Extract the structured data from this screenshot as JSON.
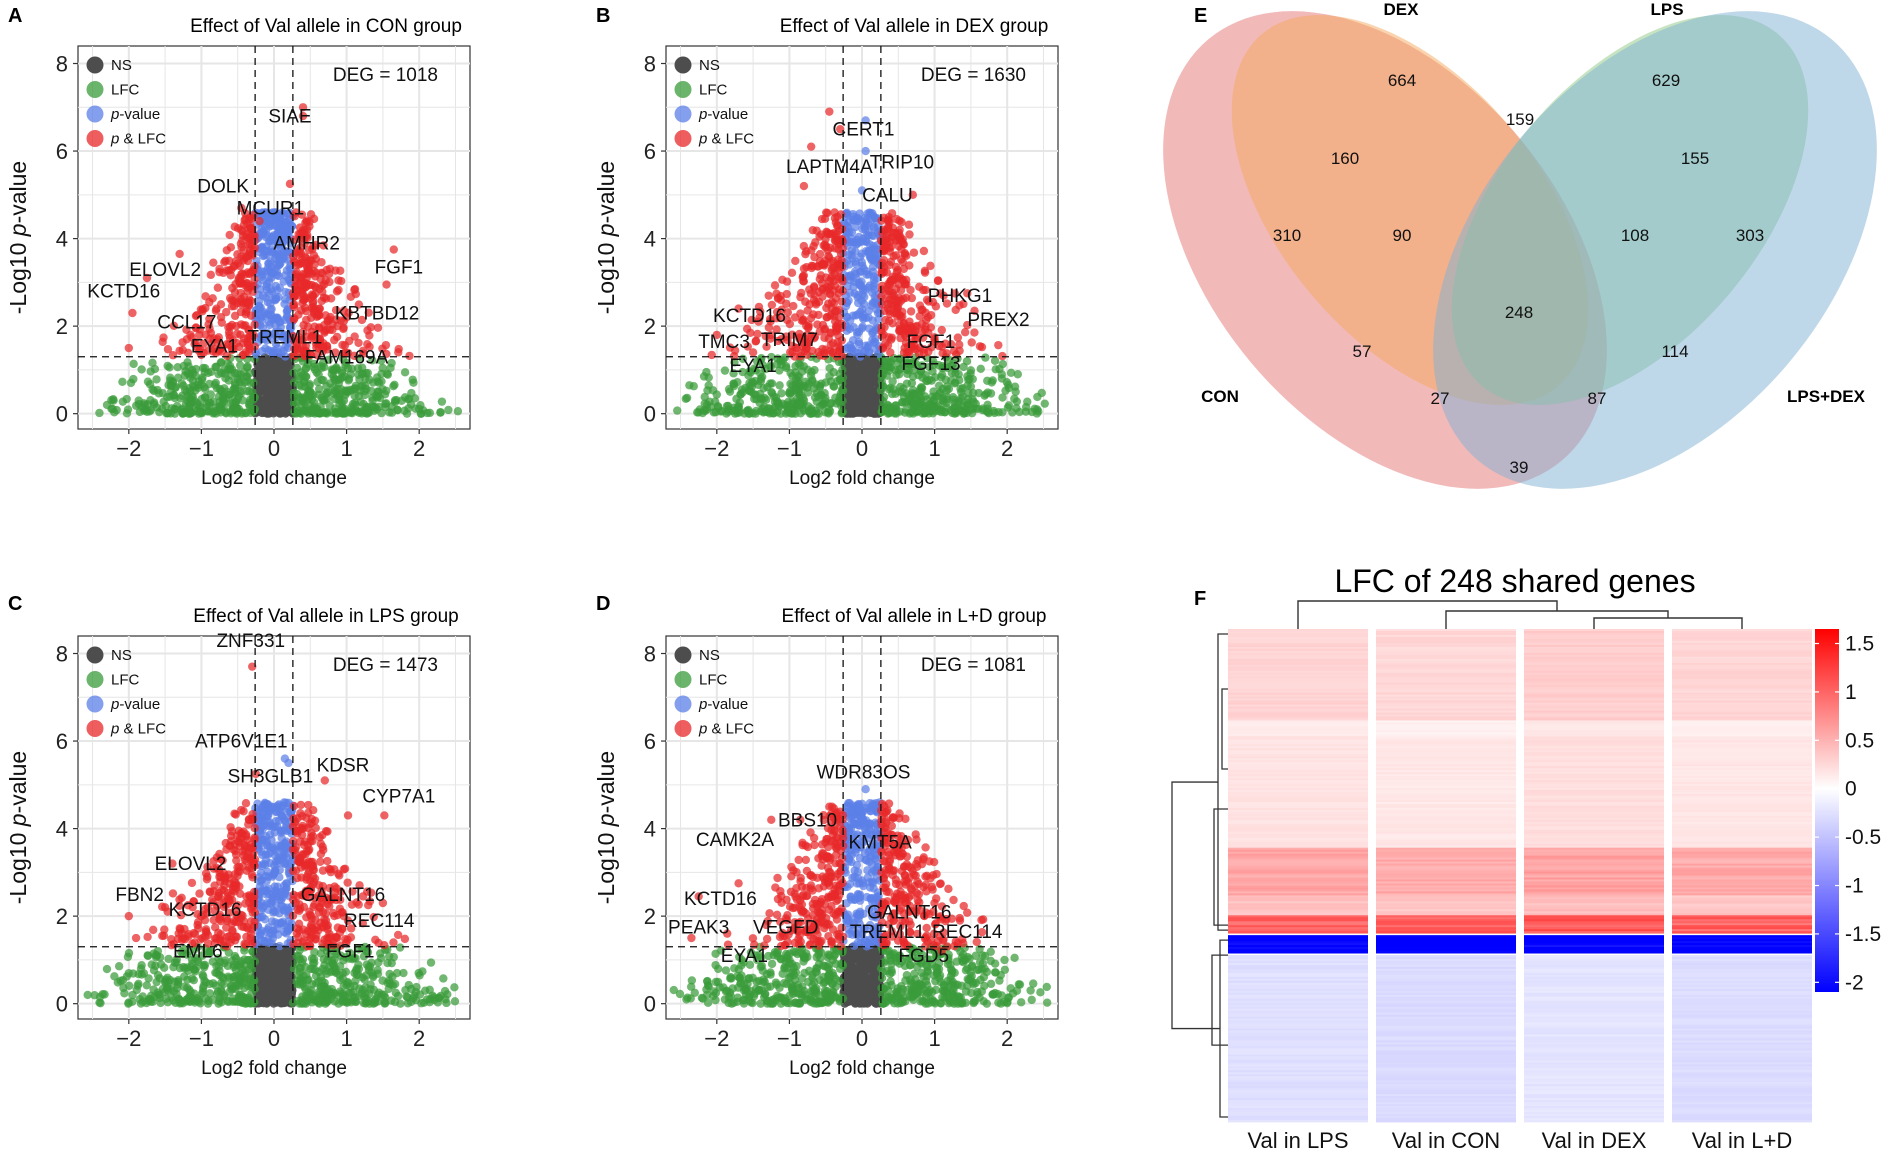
{
  "colors": {
    "ns": "#4d4d4d",
    "lfc": "#3a9b3a",
    "pvalue": "#5b7fe8",
    "p_lfc": "#e8282a",
    "grid": "#e6e6e6",
    "venn_con": "#e57373",
    "venn_dex": "#f3a95e",
    "venn_lps": "#8fca86",
    "venn_lpsdex": "#7fb2d4",
    "heat_pos": "#ff0000",
    "heat_neg": "#0000ff"
  },
  "chart_data": [
    {
      "id": "A",
      "type": "scatter",
      "title": "Effect of Val allele in CON group",
      "xlabel": "Log2 fold change",
      "ylabel_prefix": "-Log10 ",
      "ylabel_italic": "p",
      "ylabel_suffix": "-value",
      "xlim": [
        -2.7,
        2.7
      ],
      "ylim": [
        -0.35,
        8.4
      ],
      "xticks": [
        -2,
        -1,
        0,
        1,
        2
      ],
      "yticks": [
        0,
        2,
        4,
        6,
        8
      ],
      "fc_cutoff": 0.26,
      "p_cutoff": 1.3,
      "deg_label": "DEG = 1018",
      "legend": [
        {
          "key": "ns",
          "label": "NS"
        },
        {
          "key": "lfc",
          "label": "LFC"
        },
        {
          "key": "pvalue",
          "label": "-value",
          "italic": "p"
        },
        {
          "key": "p_lfc",
          "label": " & LFC",
          "italic": "p"
        }
      ],
      "max_width": 2.8,
      "seed": 11,
      "highlight_points": [
        {
          "x": 0.4,
          "y": 7.0,
          "t": "r"
        },
        {
          "x": 0.22,
          "y": 5.25,
          "t": "r"
        },
        {
          "x": -0.45,
          "y": 4.7,
          "t": "r"
        },
        {
          "x": -0.2,
          "y": 4.4,
          "t": "r"
        },
        {
          "x": -1.3,
          "y": 3.65,
          "t": "r"
        },
        {
          "x": -1.75,
          "y": 3.1,
          "t": "r"
        },
        {
          "x": -1.95,
          "y": 2.3,
          "t": "r"
        },
        {
          "x": -2.0,
          "y": 1.5,
          "t": "r"
        },
        {
          "x": 1.65,
          "y": 3.75,
          "t": "r"
        },
        {
          "x": 1.55,
          "y": 2.95,
          "t": "r"
        },
        {
          "x": 1.0,
          "y": 2.2,
          "t": "r"
        },
        {
          "x": -1.2,
          "y": 1.7,
          "t": "r"
        },
        {
          "x": 0.5,
          "y": 1.35,
          "t": "r"
        },
        {
          "x": 0.4,
          "y": 6.8,
          "t": "r"
        }
      ],
      "labels": [
        {
          "text": "SIAE",
          "x": 0.22,
          "y": 6.65
        },
        {
          "text": "DOLK",
          "x": -0.7,
          "y": 5.05
        },
        {
          "text": "MCUR1",
          "x": -0.05,
          "y": 4.55
        },
        {
          "text": "AMHR2",
          "x": 0.45,
          "y": 3.75
        },
        {
          "text": "ELOVL2",
          "x": -1.5,
          "y": 3.15
        },
        {
          "text": "KCTD16",
          "x": -2.07,
          "y": 2.65
        },
        {
          "text": "CCL17",
          "x": -1.2,
          "y": 1.95
        },
        {
          "text": "EYA1",
          "x": -0.82,
          "y": 1.4
        },
        {
          "text": "TREML1",
          "x": 0.15,
          "y": 1.6
        },
        {
          "text": "FGF1",
          "x": 1.72,
          "y": 3.2
        },
        {
          "text": "KBTBD12",
          "x": 1.42,
          "y": 2.15
        },
        {
          "text": "FAM169A",
          "x": 1.0,
          "y": 1.15
        }
      ]
    },
    {
      "id": "B",
      "type": "scatter",
      "title": "Effect of Val allele in DEX group",
      "xlabel": "Log2 fold change",
      "ylabel_prefix": "-Log10 ",
      "ylabel_italic": "p",
      "ylabel_suffix": "-value",
      "xlim": [
        -2.7,
        2.7
      ],
      "ylim": [
        -0.35,
        8.4
      ],
      "xticks": [
        -2,
        -1,
        0,
        1,
        2
      ],
      "yticks": [
        0,
        2,
        4,
        6,
        8
      ],
      "fc_cutoff": 0.26,
      "p_cutoff": 1.3,
      "deg_label": "DEG = 1630",
      "legend": [
        {
          "key": "ns",
          "label": "NS"
        },
        {
          "key": "lfc",
          "label": "LFC"
        },
        {
          "key": "pvalue",
          "label": "-value",
          "italic": "p"
        },
        {
          "key": "p_lfc",
          "label": " & LFC",
          "italic": "p"
        }
      ],
      "max_width": 3.1,
      "seed": 23,
      "highlight_points": [
        {
          "x": -0.45,
          "y": 6.9,
          "t": "r"
        },
        {
          "x": -0.3,
          "y": 6.5,
          "t": "r"
        },
        {
          "x": 0.05,
          "y": 6.7,
          "t": "b"
        },
        {
          "x": 0.05,
          "y": 6.0,
          "t": "b"
        },
        {
          "x": -0.7,
          "y": 6.1,
          "t": "r"
        },
        {
          "x": -0.8,
          "y": 5.2,
          "t": "r"
        },
        {
          "x": 0.0,
          "y": 5.1,
          "t": "b"
        },
        {
          "x": 0.7,
          "y": 5.0,
          "t": "r"
        },
        {
          "x": -1.7,
          "y": 2.4,
          "t": "r"
        },
        {
          "x": -2.0,
          "y": 1.8,
          "t": "r"
        },
        {
          "x": 1.45,
          "y": 2.75,
          "t": "r"
        },
        {
          "x": 1.55,
          "y": 2.35,
          "t": "r"
        },
        {
          "x": 1.15,
          "y": 1.6,
          "t": "r"
        },
        {
          "x": -1.5,
          "y": 1.4,
          "t": "r"
        },
        {
          "x": -1.55,
          "y": 0.7,
          "t": "g"
        }
      ],
      "labels": [
        {
          "text": "CERT1",
          "x": 0.02,
          "y": 6.35
        },
        {
          "text": "LAPTM4A",
          "x": -0.45,
          "y": 5.5
        },
        {
          "text": "TRIP10",
          "x": 0.55,
          "y": 5.6
        },
        {
          "text": "CALU",
          "x": 0.35,
          "y": 4.85
        },
        {
          "text": "PHKG1",
          "x": 1.35,
          "y": 2.55
        },
        {
          "text": "PREX2",
          "x": 1.88,
          "y": 2.0
        },
        {
          "text": "KCTD16",
          "x": -1.55,
          "y": 2.1
        },
        {
          "text": "TMC3",
          "x": -1.9,
          "y": 1.5
        },
        {
          "text": "TRIM7",
          "x": -1.0,
          "y": 1.55
        },
        {
          "text": "FGF1",
          "x": 0.95,
          "y": 1.5
        },
        {
          "text": "EYA1",
          "x": -1.5,
          "y": 0.95
        },
        {
          "text": "FGF13",
          "x": 0.95,
          "y": 1.0
        }
      ]
    },
    {
      "id": "C",
      "type": "scatter",
      "title": "Effect of Val allele in LPS group",
      "xlabel": "Log2 fold change",
      "ylabel_prefix": "-Log10 ",
      "ylabel_italic": "p",
      "ylabel_suffix": "-value",
      "xlim": [
        -2.7,
        2.7
      ],
      "ylim": [
        -0.35,
        8.4
      ],
      "xticks": [
        -2,
        -1,
        0,
        1,
        2
      ],
      "yticks": [
        0,
        2,
        4,
        6,
        8
      ],
      "fc_cutoff": 0.26,
      "p_cutoff": 1.3,
      "deg_label": "DEG = 1473",
      "legend": [
        {
          "key": "ns",
          "label": "NS"
        },
        {
          "key": "lfc",
          "label": "LFC"
        },
        {
          "key": "pvalue",
          "label": "-value",
          "italic": "p"
        },
        {
          "key": "p_lfc",
          "label": " & LFC",
          "italic": "p"
        }
      ],
      "max_width": 3.0,
      "seed": 37,
      "highlight_points": [
        {
          "x": -0.3,
          "y": 7.7,
          "t": "r"
        },
        {
          "x": 0.15,
          "y": 5.6,
          "t": "b"
        },
        {
          "x": 0.2,
          "y": 5.5,
          "t": "b"
        },
        {
          "x": -0.25,
          "y": 5.25,
          "t": "r"
        },
        {
          "x": 0.7,
          "y": 5.1,
          "t": "r"
        },
        {
          "x": 1.02,
          "y": 4.3,
          "t": "r"
        },
        {
          "x": 1.52,
          "y": 4.3,
          "t": "r"
        },
        {
          "x": -1.4,
          "y": 3.2,
          "t": "r"
        },
        {
          "x": -2.0,
          "y": 2.0,
          "t": "r"
        },
        {
          "x": -1.5,
          "y": 2.2,
          "t": "r"
        },
        {
          "x": -1.9,
          "y": 1.5,
          "t": "r"
        },
        {
          "x": 1.5,
          "y": 2.3,
          "t": "r"
        },
        {
          "x": -1.6,
          "y": 1.2,
          "t": "g"
        }
      ],
      "labels": [
        {
          "text": "ZNF331",
          "x": -0.32,
          "y": 8.15
        },
        {
          "text": "ATP6V1E1",
          "x": -0.45,
          "y": 5.85
        },
        {
          "text": "KDSR",
          "x": 0.95,
          "y": 5.3
        },
        {
          "text": "SH3GLB1",
          "x": -0.05,
          "y": 5.05
        },
        {
          "text": "CYP7A1",
          "x": 1.72,
          "y": 4.6
        },
        {
          "text": "ELOVL2",
          "x": -1.15,
          "y": 3.05
        },
        {
          "text": "FBN2",
          "x": -1.85,
          "y": 2.35
        },
        {
          "text": "KCTD16",
          "x": -0.95,
          "y": 2.0
        },
        {
          "text": "GALNT16",
          "x": 0.95,
          "y": 2.35
        },
        {
          "text": "REC114",
          "x": 1.45,
          "y": 1.75
        },
        {
          "text": "EML6",
          "x": -1.05,
          "y": 1.05
        },
        {
          "text": "FGF1",
          "x": 1.05,
          "y": 1.05
        }
      ]
    },
    {
      "id": "D",
      "type": "scatter",
      "title": "Effect of Val allele in L+D group",
      "xlabel": "Log2 fold change",
      "ylabel_prefix": "-Log10 ",
      "ylabel_italic": "p",
      "ylabel_suffix": "-value",
      "xlim": [
        -2.7,
        2.7
      ],
      "ylim": [
        -0.35,
        8.4
      ],
      "xticks": [
        -2,
        -1,
        0,
        1,
        2
      ],
      "yticks": [
        0,
        2,
        4,
        6,
        8
      ],
      "fc_cutoff": 0.26,
      "p_cutoff": 1.3,
      "deg_label": "DEG = 1081",
      "legend": [
        {
          "key": "ns",
          "label": "NS"
        },
        {
          "key": "lfc",
          "label": "LFC"
        },
        {
          "key": "pvalue",
          "label": "-value",
          "italic": "p"
        },
        {
          "key": "p_lfc",
          "label": " & LFC",
          "italic": "p"
        }
      ],
      "max_width": 2.9,
      "seed": 51,
      "highlight_points": [
        {
          "x": 0.05,
          "y": 4.9,
          "t": "b"
        },
        {
          "x": -0.45,
          "y": 4.5,
          "t": "r"
        },
        {
          "x": -1.25,
          "y": 4.2,
          "t": "r"
        },
        {
          "x": -0.85,
          "y": 4.2,
          "t": "r"
        },
        {
          "x": -0.35,
          "y": 3.8,
          "t": "r"
        },
        {
          "x": 0.0,
          "y": 3.7,
          "t": "b"
        },
        {
          "x": 0.75,
          "y": 3.75,
          "t": "r"
        },
        {
          "x": -2.25,
          "y": 2.45,
          "t": "r"
        },
        {
          "x": -1.7,
          "y": 2.75,
          "t": "r"
        },
        {
          "x": 1.35,
          "y": 1.9,
          "t": "r"
        },
        {
          "x": -2.35,
          "y": 1.5,
          "t": "r"
        },
        {
          "x": 1.1,
          "y": 1.2,
          "t": "r"
        }
      ],
      "labels": [
        {
          "text": "WDR83OS",
          "x": 0.02,
          "y": 5.15
        },
        {
          "text": "BBS10",
          "x": -0.75,
          "y": 4.05
        },
        {
          "text": "CAMK2A",
          "x": -1.75,
          "y": 3.6
        },
        {
          "text": "KMT5A",
          "x": 0.25,
          "y": 3.55
        },
        {
          "text": "KCTD16",
          "x": -1.95,
          "y": 2.25
        },
        {
          "text": "GALNT16",
          "x": 0.65,
          "y": 1.95
        },
        {
          "text": "PEAK3",
          "x": -2.25,
          "y": 1.6
        },
        {
          "text": "VEGFD",
          "x": -1.05,
          "y": 1.6
        },
        {
          "text": "TREML1",
          "x": 0.35,
          "y": 1.5
        },
        {
          "text": "REC114",
          "x": 1.45,
          "y": 1.5
        },
        {
          "text": "EYA1",
          "x": -1.62,
          "y": 0.95
        },
        {
          "text": "FGD5",
          "x": 0.85,
          "y": 0.95
        }
      ]
    },
    {
      "id": "E",
      "type": "venn",
      "sets": [
        "CON",
        "DEX",
        "LPS",
        "LPS+DEX"
      ],
      "regions": [
        {
          "sets": [
            "DEX"
          ],
          "count": 664
        },
        {
          "sets": [
            "LPS"
          ],
          "count": 629
        },
        {
          "sets": [
            "DEX",
            "LPS"
          ],
          "count": 159
        },
        {
          "sets": [
            "CON",
            "DEX"
          ],
          "count": 160
        },
        {
          "sets": [
            "LPS",
            "LPS+DEX"
          ],
          "count": 155
        },
        {
          "sets": [
            "CON"
          ],
          "count": 310
        },
        {
          "sets": [
            "CON",
            "DEX",
            "LPS"
          ],
          "count": 90
        },
        {
          "sets": [
            "DEX",
            "LPS",
            "LPS+DEX"
          ],
          "count": 108
        },
        {
          "sets": [
            "LPS+DEX"
          ],
          "count": 303
        },
        {
          "sets": [
            "CON",
            "DEX",
            "LPS",
            "LPS+DEX"
          ],
          "count": 248
        },
        {
          "sets": [
            "CON",
            "LPS"
          ],
          "count": 57
        },
        {
          "sets": [
            "DEX",
            "LPS+DEX"
          ],
          "count": 114
        },
        {
          "sets": [
            "CON",
            "LPS",
            "LPS+DEX"
          ],
          "count": 27
        },
        {
          "sets": [
            "CON",
            "DEX",
            "LPS+DEX"
          ],
          "count": 87
        },
        {
          "sets": [
            "CON",
            "LPS+DEX"
          ],
          "count": 39
        }
      ]
    },
    {
      "id": "F",
      "type": "heatmap",
      "title": "LFC of 248 shared genes",
      "columns": [
        "Val in LPS",
        "Val in CON",
        "Val in DEX",
        "Val in L+D"
      ],
      "colorbar_ticks": [
        1.5,
        1,
        0.5,
        0,
        -0.5,
        -1,
        -1.5,
        -2
      ],
      "colorbar_range": [
        -2.1,
        1.65
      ],
      "row_blocks": [
        {
          "rows": 46,
          "lfc": 0.28
        },
        {
          "rows": 8,
          "lfc": 0.12
        },
        {
          "rows": 56,
          "lfc": 0.18
        },
        {
          "rows": 24,
          "lfc": 0.55
        },
        {
          "rows": 10,
          "lfc": 0.38
        },
        {
          "rows": 10,
          "lfc": 1.0
        },
        {
          "rows": 10,
          "lfc": -1.8
        },
        {
          "rows": 84,
          "lfc": -0.2
        }
      ]
    }
  ]
}
